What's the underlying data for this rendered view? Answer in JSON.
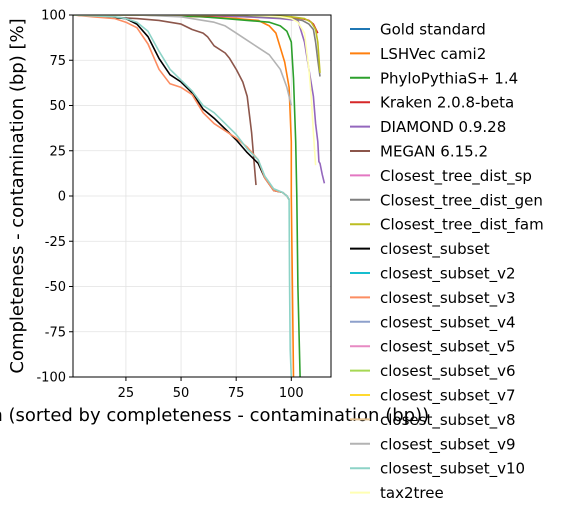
{
  "chart_data": {
    "type": "line",
    "title": "",
    "xlabel": "bin (sorted by completeness - contamination (bp))",
    "ylabel": "Completeness - contamination (bp) [%]",
    "xlim": [
      1,
      118
    ],
    "ylim": [
      -100,
      100
    ],
    "xticks": [
      25,
      50,
      75,
      100
    ],
    "yticks": [
      -100,
      -75,
      -50,
      -25,
      0,
      25,
      50,
      75,
      100
    ],
    "grid": true,
    "legend_position": "outside-right",
    "series": [
      {
        "name": "Gold standard",
        "color": "#1f77b4",
        "x": [],
        "y": []
      },
      {
        "name": "LSHVec cami2",
        "color": "#ff7f0e",
        "x": [
          1,
          30,
          60,
          75,
          85,
          90,
          93,
          95,
          97,
          99,
          100,
          100,
          101
        ],
        "y": [
          100,
          100,
          99,
          98,
          97,
          94,
          90,
          82,
          74,
          60,
          30,
          0,
          -100
        ]
      },
      {
        "name": "PhyloPythiaS+ 1.4",
        "color": "#2ca02c",
        "x": [
          1,
          40,
          60,
          70,
          80,
          90,
          95,
          98,
          100,
          101,
          102,
          102.5,
          103,
          104
        ],
        "y": [
          100,
          100,
          99,
          98,
          97,
          96,
          94,
          91,
          85,
          65,
          30,
          0,
          -50,
          -100
        ]
      },
      {
        "name": "Kraken 2.0.8-beta",
        "color": "#d62728",
        "x": [
          1,
          50,
          80,
          95,
          105,
          108,
          110,
          112
        ],
        "y": [
          100,
          100,
          99,
          99,
          98,
          97,
          95,
          90
        ]
      },
      {
        "name": "DIAMOND 0.9.28",
        "color": "#9467bd",
        "x": [
          1,
          60,
          80,
          95,
          103,
          106,
          108,
          110,
          111,
          112,
          112.5,
          113,
          114,
          115
        ],
        "y": [
          100,
          100,
          99,
          98,
          97,
          85,
          70,
          55,
          40,
          30,
          19,
          18,
          12,
          7
        ]
      },
      {
        "name": "MEGAN 6.15.2",
        "color": "#8c564b",
        "x": [
          1,
          30,
          40,
          50,
          55,
          60,
          62,
          65,
          70,
          72,
          75,
          78,
          80,
          82,
          84
        ],
        "y": [
          100,
          98,
          97,
          95,
          92,
          90,
          88,
          83,
          79,
          76,
          70,
          63,
          55,
          35,
          6
        ]
      },
      {
        "name": "Closest_tree_dist_sp",
        "color": "#e377c2",
        "x": [],
        "y": []
      },
      {
        "name": "Closest_tree_dist_gen",
        "color": "#7f7f7f",
        "x": [
          1,
          70,
          90,
          100,
          105,
          108,
          110,
          111,
          112,
          113
        ],
        "y": [
          100,
          100,
          99,
          98,
          97,
          95,
          92,
          85,
          75,
          66
        ]
      },
      {
        "name": "Closest_tree_dist_fam",
        "color": "#bcbd22",
        "x": [
          1,
          80,
          100,
          106,
          109,
          111,
          112,
          113
        ],
        "y": [
          100,
          100,
          99,
          98,
          96,
          92,
          85,
          68
        ]
      },
      {
        "name": "closest_subset",
        "color": "#000000",
        "x": [
          1,
          15,
          25,
          30,
          35,
          40,
          45,
          50,
          55,
          60,
          65,
          70,
          75,
          80,
          85,
          88,
          92,
          96,
          98,
          99
        ],
        "y": [
          100,
          99,
          98,
          95,
          88,
          76,
          67,
          63,
          57,
          48,
          43,
          37,
          31,
          24,
          18,
          10,
          3,
          2,
          0,
          -2
        ]
      },
      {
        "name": "closest_subset_v2",
        "color": "#17becf",
        "x": [],
        "y": []
      },
      {
        "name": "closest_subset_v3",
        "color": "#fc8d62",
        "x": [
          1,
          10,
          20,
          25,
          30,
          35,
          40,
          45,
          50,
          55,
          60,
          65,
          70,
          75,
          80,
          85,
          88,
          92,
          96,
          98,
          99
        ],
        "y": [
          100,
          99,
          98,
          96,
          93,
          84,
          70,
          62,
          60,
          56,
          46,
          40,
          36,
          32,
          27,
          20,
          10,
          3,
          2,
          0,
          -2
        ]
      },
      {
        "name": "closest_subset_v4",
        "color": "#8da0cb",
        "x": [],
        "y": []
      },
      {
        "name": "closest_subset_v5",
        "color": "#e78ac3",
        "x": [],
        "y": []
      },
      {
        "name": "closest_subset_v6",
        "color": "#a6d854",
        "x": [],
        "y": []
      },
      {
        "name": "closest_subset_v7",
        "color": "#ffd92f",
        "x": [],
        "y": []
      },
      {
        "name": "closest_subset_v8",
        "color": "#e5c494",
        "x": [],
        "y": []
      },
      {
        "name": "closest_subset_v9",
        "color": "#b3b3b3",
        "x": [
          1,
          30,
          50,
          60,
          65,
          70,
          75,
          80,
          85,
          90,
          95,
          98,
          100
        ],
        "y": [
          100,
          100,
          99,
          97,
          96,
          94,
          90,
          86,
          82,
          78,
          70,
          60,
          50
        ]
      },
      {
        "name": "closest_subset_v10",
        "color": "#8dd3c7",
        "x": [
          1,
          20,
          25,
          30,
          35,
          40,
          45,
          50,
          55,
          60,
          65,
          70,
          75,
          80,
          85,
          88,
          92,
          96,
          98,
          99,
          99.2,
          99.5,
          100
        ],
        "y": [
          100,
          99,
          98,
          96,
          91,
          80,
          70,
          64,
          58,
          50,
          46,
          40,
          34,
          26,
          20,
          11,
          4,
          2,
          0,
          -2,
          -45,
          -85,
          -100
        ]
      },
      {
        "name": "tax2tree",
        "color": "#ffffb3",
        "x": [
          1,
          80,
          95,
          100,
          103,
          106,
          108,
          109,
          110,
          111
        ],
        "y": [
          100,
          100,
          99,
          98,
          96,
          90,
          70,
          55,
          35,
          17
        ]
      }
    ]
  }
}
